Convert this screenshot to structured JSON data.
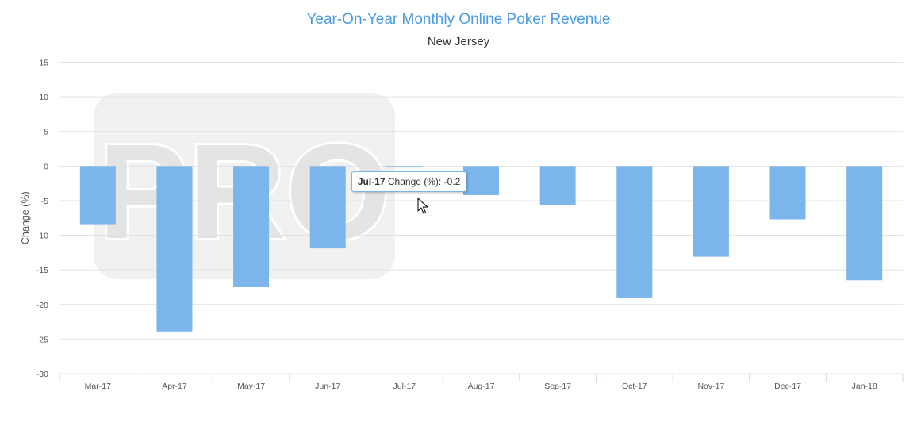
{
  "chart_data": {
    "type": "bar",
    "title": "Year-On-Year Monthly Online Poker Revenue",
    "subtitle": "New Jersey",
    "ylabel": "Change (%)",
    "xlabel": "",
    "ylim": [
      -30,
      15
    ],
    "yticks": [
      15,
      10,
      5,
      0,
      -5,
      -10,
      -15,
      -20,
      -25,
      -30
    ],
    "grid": true,
    "categories": [
      "Mar-17",
      "Apr-17",
      "May-17",
      "Jun-17",
      "Jul-17",
      "Aug-17",
      "Sep-17",
      "Oct-17",
      "Nov-17",
      "Dec-17",
      "Jan-18"
    ],
    "series": [
      {
        "values": [
          -8.4,
          -23.9,
          -17.5,
          -11.9,
          -0.2,
          -4.2,
          -5.7,
          -19.1,
          -13.1,
          -7.7,
          -16.5
        ]
      }
    ],
    "colors": {
      "bar": "#7cb5ec",
      "title": "#4a9be6"
    },
    "watermark": "PRO",
    "tooltip": {
      "category": "Jul-17",
      "label": "Change (%):",
      "value": "-0.2"
    }
  }
}
